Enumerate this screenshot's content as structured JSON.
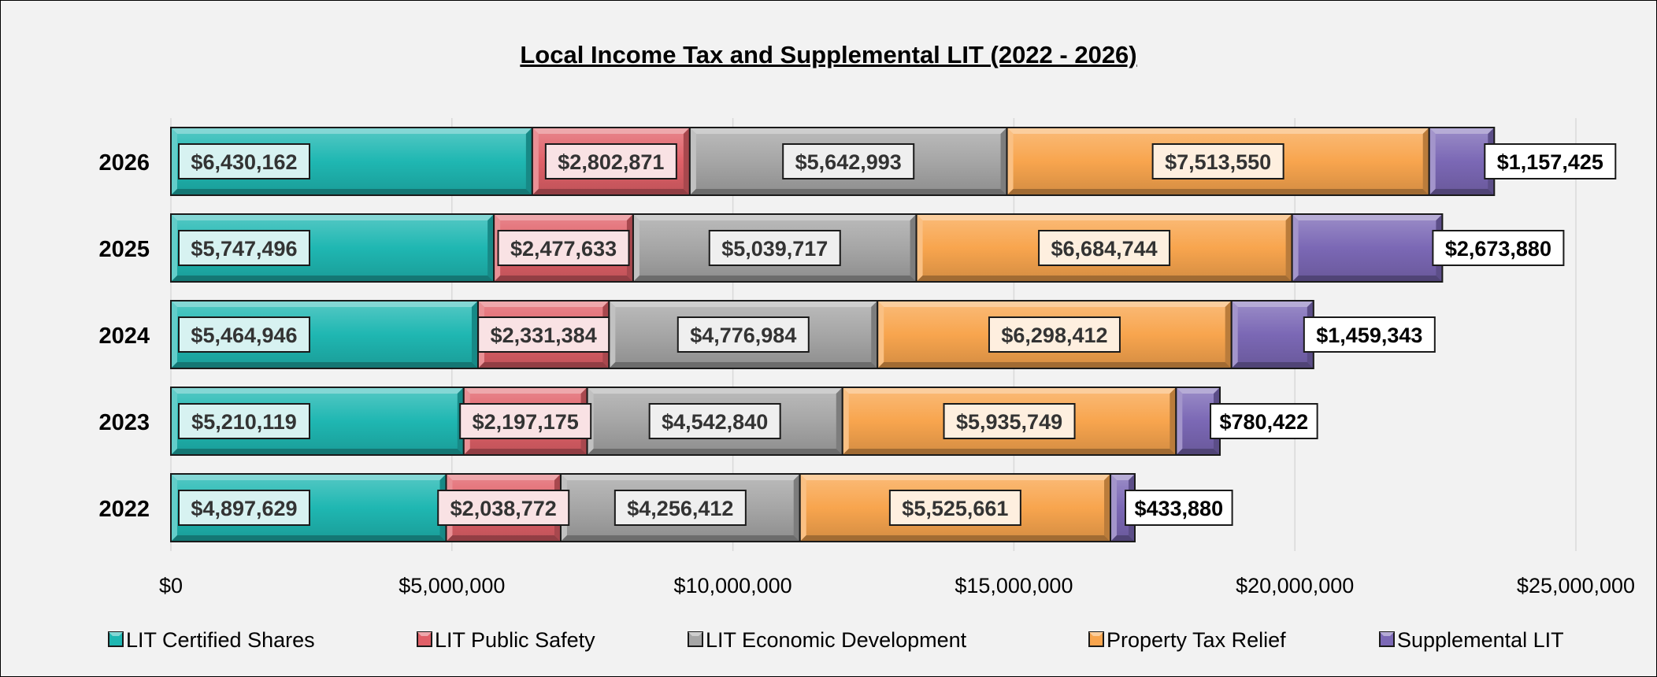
{
  "chart_data": {
    "type": "bar",
    "orientation": "horizontal",
    "stacked": true,
    "title": "Local Income Tax and Supplemental LIT (2022 - 2026)",
    "xlabel": "",
    "ylabel": "",
    "categories": [
      "2026",
      "2025",
      "2024",
      "2023",
      "2022"
    ],
    "xlim": [
      0,
      25000000
    ],
    "x_ticks": [
      0,
      5000000,
      10000000,
      15000000,
      20000000,
      25000000
    ],
    "x_tick_labels": [
      "$0",
      "$5,000,000",
      "$10,000,000",
      "$15,000,000",
      "$20,000,000",
      "$25,000,000"
    ],
    "grid": "vertical",
    "legend_position": "bottom",
    "series": [
      {
        "name": "LIT Certified Shares",
        "color": "#1fb7b2",
        "values": [
          6430162,
          5747496,
          5464946,
          5210119,
          4897629
        ],
        "labels": [
          "$6,430,162",
          "$5,747,496",
          "$5,464,946",
          "$5,210,119",
          "$4,897,629"
        ]
      },
      {
        "name": "LIT Public Safety",
        "color": "#e06068",
        "values": [
          2802871,
          2477633,
          2331384,
          2197175,
          2038772
        ],
        "labels": [
          "$2,802,871",
          "$2,477,633",
          "$2,331,384",
          "$2,197,175",
          "$2,038,772"
        ]
      },
      {
        "name": "LIT Economic Development",
        "color": "#a6a6a6",
        "values": [
          5642993,
          5039717,
          4776984,
          4542840,
          4256412
        ],
        "labels": [
          "$5,642,993",
          "$5,039,717",
          "$4,776,984",
          "$4,542,840",
          "$4,256,412"
        ]
      },
      {
        "name": "Property Tax Relief",
        "color": "#f8a54e",
        "values": [
          7513550,
          6684744,
          6298412,
          5935749,
          5525661
        ],
        "labels": [
          "$7,513,550",
          "$6,684,744",
          "$6,298,412",
          "$5,935,749",
          "$5,525,661"
        ]
      },
      {
        "name": "Supplemental LIT",
        "color": "#7b68b5",
        "values": [
          1157425,
          2673880,
          1459343,
          780422,
          433880
        ],
        "labels": [
          "$1,157,425",
          "$2,673,880",
          "$1,459,343",
          "$780,422",
          "$433,880"
        ]
      }
    ]
  }
}
